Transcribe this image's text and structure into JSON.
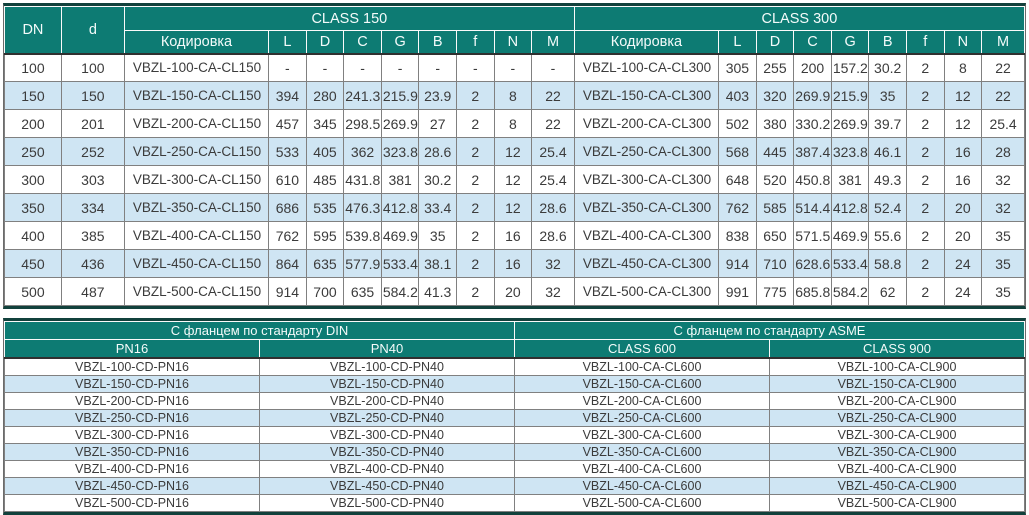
{
  "colors": {
    "header_teal": "#0d7b73",
    "row_alt_blue": "#cfe5f3",
    "frame_dark": "#11413c",
    "grid_gray": "#808080",
    "text_dark": "#3b3b3b"
  },
  "top_table": {
    "corner": [
      "DN",
      "d"
    ],
    "groups": [
      "CLASS 150",
      "CLASS 300"
    ],
    "columns": [
      "Кодировка",
      "L",
      "D",
      "C",
      "G",
      "B",
      "f",
      "N",
      "M"
    ],
    "rows": [
      [
        "100",
        "100",
        "VBZL-100-CA-CL150",
        "-",
        "-",
        "-",
        "-",
        "-",
        "-",
        "-",
        "-",
        "VBZL-100-CA-CL300",
        "305",
        "255",
        "200",
        "157.2",
        "30.2",
        "2",
        "8",
        "22"
      ],
      [
        "150",
        "150",
        "VBZL-150-CA-CL150",
        "394",
        "280",
        "241.3",
        "215.9",
        "23.9",
        "2",
        "8",
        "22",
        "VBZL-150-CA-CL300",
        "403",
        "320",
        "269.9",
        "215.9",
        "35",
        "2",
        "12",
        "22"
      ],
      [
        "200",
        "201",
        "VBZL-200-CA-CL150",
        "457",
        "345",
        "298.5",
        "269.9",
        "27",
        "2",
        "8",
        "22",
        "VBZL-200-CA-CL300",
        "502",
        "380",
        "330.2",
        "269.9",
        "39.7",
        "2",
        "12",
        "25.4"
      ],
      [
        "250",
        "252",
        "VBZL-250-CA-CL150",
        "533",
        "405",
        "362",
        "323.8",
        "28.6",
        "2",
        "12",
        "25.4",
        "VBZL-250-CA-CL300",
        "568",
        "445",
        "387.4",
        "323.8",
        "46.1",
        "2",
        "16",
        "28"
      ],
      [
        "300",
        "303",
        "VBZL-300-CA-CL150",
        "610",
        "485",
        "431.8",
        "381",
        "30.2",
        "2",
        "12",
        "25.4",
        "VBZL-300-CA-CL300",
        "648",
        "520",
        "450.8",
        "381",
        "49.3",
        "2",
        "16",
        "32"
      ],
      [
        "350",
        "334",
        "VBZL-350-CA-CL150",
        "686",
        "535",
        "476.3",
        "412.8",
        "33.4",
        "2",
        "12",
        "28.6",
        "VBZL-350-CA-CL300",
        "762",
        "585",
        "514.4",
        "412.8",
        "52.4",
        "2",
        "20",
        "32"
      ],
      [
        "400",
        "385",
        "VBZL-400-CA-CL150",
        "762",
        "595",
        "539.8",
        "469.9",
        "35",
        "2",
        "16",
        "28.6",
        "VBZL-400-CA-CL300",
        "838",
        "650",
        "571.5",
        "469.9",
        "55.6",
        "2",
        "20",
        "35"
      ],
      [
        "450",
        "436",
        "VBZL-450-CA-CL150",
        "864",
        "635",
        "577.9",
        "533.4",
        "38.1",
        "2",
        "16",
        "32",
        "VBZL-450-CA-CL300",
        "914",
        "710",
        "628.6",
        "533.4",
        "58.8",
        "2",
        "24",
        "35"
      ],
      [
        "500",
        "487",
        "VBZL-500-CA-CL150",
        "914",
        "700",
        "635",
        "584.2",
        "41.3",
        "2",
        "20",
        "32",
        "VBZL-500-CA-CL300",
        "991",
        "775",
        "685.8",
        "584.2",
        "62",
        "2",
        "24",
        "35"
      ]
    ]
  },
  "bottom_table": {
    "groups": [
      "С фланцем по стандарту DIN",
      "С фланцем по стандарту ASME"
    ],
    "columns": [
      "PN16",
      "PN40",
      "CLASS 600",
      "CLASS 900"
    ],
    "rows": [
      [
        "VBZL-100-CD-PN16",
        "VBZL-100-CD-PN40",
        "VBZL-100-CA-CL600",
        "VBZL-100-CA-CL900"
      ],
      [
        "VBZL-150-CD-PN16",
        "VBZL-150-CD-PN40",
        "VBZL-150-CA-CL600",
        "VBZL-150-CA-CL900"
      ],
      [
        "VBZL-200-CD-PN16",
        "VBZL-200-CD-PN40",
        "VBZL-200-CA-CL600",
        "VBZL-200-CA-CL900"
      ],
      [
        "VBZL-250-CD-PN16",
        "VBZL-250-CD-PN40",
        "VBZL-250-CA-CL600",
        "VBZL-250-CA-CL900"
      ],
      [
        "VBZL-300-CD-PN16",
        "VBZL-300-CD-PN40",
        "VBZL-300-CA-CL600",
        "VBZL-300-CA-CL900"
      ],
      [
        "VBZL-350-CD-PN16",
        "VBZL-350-CD-PN40",
        "VBZL-350-CA-CL600",
        "VBZL-350-CA-CL900"
      ],
      [
        "VBZL-400-CD-PN16",
        "VBZL-400-CD-PN40",
        "VBZL-400-CA-CL600",
        "VBZL-400-CA-CL900"
      ],
      [
        "VBZL-450-CD-PN16",
        "VBZL-450-CD-PN40",
        "VBZL-450-CA-CL600",
        "VBZL-450-CA-CL900"
      ],
      [
        "VBZL-500-CD-PN16",
        "VBZL-500-CD-PN40",
        "VBZL-500-CA-CL600",
        "VBZL-500-CA-CL900"
      ]
    ]
  }
}
